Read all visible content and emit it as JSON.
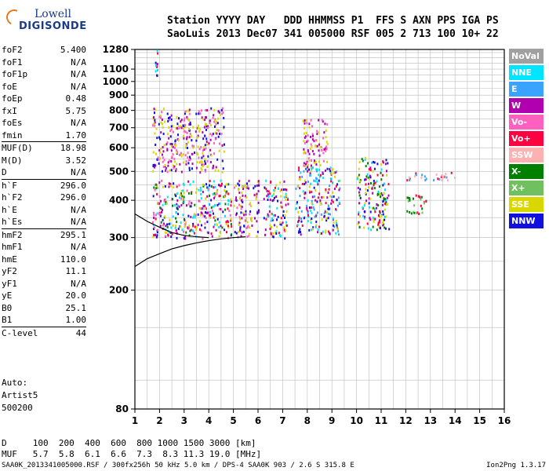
{
  "logo": {
    "line1": "Lowell",
    "line2": "DIGISONDE"
  },
  "header": {
    "labels": "Station YYYY DAY   DDD HHMMSS P1  FFS S AXN PPS IGA PS",
    "values": "SaoLuis 2013 Dec07 341 005000 RSF 005 2 713 100 10+ 22"
  },
  "params": [
    {
      "label": "foF2",
      "value": "5.400"
    },
    {
      "label": "foF1",
      "value": "N/A"
    },
    {
      "label": "foF1p",
      "value": "N/A"
    },
    {
      "label": "foE",
      "value": "N/A"
    },
    {
      "label": "foEp",
      "value": "0.48"
    },
    {
      "label": "fxI",
      "value": "5.75"
    },
    {
      "label": "foEs",
      "value": "N/A"
    },
    {
      "label": "fmin",
      "value": "1.70"
    },
    {
      "label": "MUF(D)",
      "value": "18.98",
      "sep": true
    },
    {
      "label": "M(D)",
      "value": "3.52"
    },
    {
      "label": "D",
      "value": "N/A"
    },
    {
      "label": "h`F",
      "value": "296.0",
      "sep": true
    },
    {
      "label": "h`F2",
      "value": "296.0"
    },
    {
      "label": "h`E",
      "value": "N/A"
    },
    {
      "label": "h`Es",
      "value": "N/A"
    },
    {
      "label": "hmF2",
      "value": "295.1",
      "sep": true
    },
    {
      "label": "hmF1",
      "value": "N/A"
    },
    {
      "label": "hmE",
      "value": "110.0"
    },
    {
      "label": "yF2",
      "value": "11.1"
    },
    {
      "label": "yF1",
      "value": "N/A"
    },
    {
      "label": "yE",
      "value": "20.0"
    },
    {
      "label": "B0",
      "value": "25.1"
    },
    {
      "label": "B1",
      "value": "1.00"
    },
    {
      "label": "C-level",
      "value": "44",
      "sep": true
    }
  ],
  "auto": {
    "line1": "Auto:",
    "line2": "Artist5",
    "line3": "500200"
  },
  "bottom": {
    "d_row": "D     100  200  400  600  800 1000 1500 3000 [km]",
    "muf_row": "MUF   5.7  5.8  6.1  6.6  7.3  8.3 11.3 19.0 [MHz]"
  },
  "footer": {
    "left": "SAA0K_2013341005000.RSF / 300fx256h 50 kHz 5.0 km / DPS-4 SAA0K 903 / 2.6 S 315.8 E",
    "right": "Ion2Png 1.3.17"
  },
  "legend": [
    {
      "label": "NoVal",
      "color": "#a0a0a0"
    },
    {
      "label": "NNE",
      "color": "#00e5ff"
    },
    {
      "label": "E",
      "color": "#3aa3ff"
    },
    {
      "label": "W",
      "color": "#b000b0"
    },
    {
      "label": "Vo-",
      "color": "#ff60c0"
    },
    {
      "label": "Vo+",
      "color": "#ff0040"
    },
    {
      "label": "SSW",
      "color": "#ffb0b0"
    },
    {
      "label": "X-",
      "color": "#008000"
    },
    {
      "label": "X+",
      "color": "#70c060"
    },
    {
      "label": "SSE",
      "color": "#d8d800"
    },
    {
      "label": "NNW",
      "color": "#1010e0"
    }
  ],
  "chart_data": {
    "type": "scatter",
    "xlabel": "",
    "ylabel": "",
    "xlim": [
      1,
      16
    ],
    "ylim": [
      80,
      1280
    ],
    "y_scale": "log",
    "xticks": [
      "1",
      "2",
      "3",
      "4",
      "5",
      "6",
      "7",
      "8",
      "9",
      "10",
      "11",
      "12",
      "13",
      "14",
      "15",
      "16"
    ],
    "yticks": [
      "80",
      "200",
      "300",
      "400",
      "500",
      "600",
      "700",
      "800",
      "900",
      "1000",
      "1100",
      "1280"
    ],
    "grid": true,
    "traces": [
      {
        "name": "virtual height trace",
        "x": [
          1.0,
          1.5,
          2.0,
          2.5,
          3.0,
          3.5,
          4.0,
          4.5,
          5.0,
          5.5
        ],
        "y": [
          240,
          255,
          265,
          275,
          282,
          288,
          293,
          297,
          300,
          302
        ]
      },
      {
        "name": "",
        "x": [
          1.0,
          1.5,
          2.0,
          2.5,
          3.0,
          3.5,
          4.0
        ],
        "y": [
          360,
          340,
          325,
          312,
          305,
          302,
          300
        ]
      }
    ],
    "echo_clusters": [
      {
        "x": [
          1.7,
          4.9
        ],
        "y": [
          300,
          470
        ],
        "colors": [
          "#b000b0",
          "#ff0040",
          "#1010e0",
          "#d8d800",
          "#00e5ff",
          "#ff60c0",
          "#008000"
        ]
      },
      {
        "x": [
          1.7,
          4.6
        ],
        "y": [
          500,
          820
        ],
        "colors": [
          "#b000b0",
          "#1010e0",
          "#d8d800",
          "#ff60c0"
        ]
      },
      {
        "x": [
          5.0,
          6.0
        ],
        "y": [
          300,
          470
        ],
        "colors": [
          "#d8d800",
          "#b000b0",
          "#1010e0",
          "#ff60c0"
        ]
      },
      {
        "x": [
          6.2,
          7.2
        ],
        "y": [
          300,
          470
        ],
        "colors": [
          "#d8d800",
          "#b000b0",
          "#ff0040",
          "#00e5ff",
          "#1010e0"
        ]
      },
      {
        "x": [
          7.5,
          9.3
        ],
        "y": [
          310,
          520
        ],
        "colors": [
          "#d8d800",
          "#3aa3ff",
          "#00e5ff",
          "#1010e0",
          "#ff0040",
          "#b000b0"
        ]
      },
      {
        "x": [
          7.8,
          8.8
        ],
        "y": [
          520,
          760
        ],
        "colors": [
          "#b000b0",
          "#ff60c0",
          "#d8d800"
        ]
      },
      {
        "x": [
          10.0,
          11.3
        ],
        "y": [
          320,
          560
        ],
        "colors": [
          "#008000",
          "#00e5ff",
          "#ff0040",
          "#b000b0",
          "#d8d800",
          "#1010e0"
        ]
      },
      {
        "x": [
          12.0,
          12.8
        ],
        "y": [
          360,
          420
        ],
        "colors": [
          "#ff0040",
          "#008000",
          "#70c060"
        ]
      },
      {
        "x": [
          12.0,
          14.0
        ],
        "y": [
          470,
          500
        ],
        "colors": [
          "#ff0040",
          "#ffb0b0",
          "#3aa3ff"
        ]
      },
      {
        "x": [
          1.8,
          1.9
        ],
        "y": [
          1020,
          1280
        ],
        "colors": [
          "#b000b0",
          "#00e5ff",
          "#1010e0",
          "#ff0040"
        ]
      }
    ]
  }
}
